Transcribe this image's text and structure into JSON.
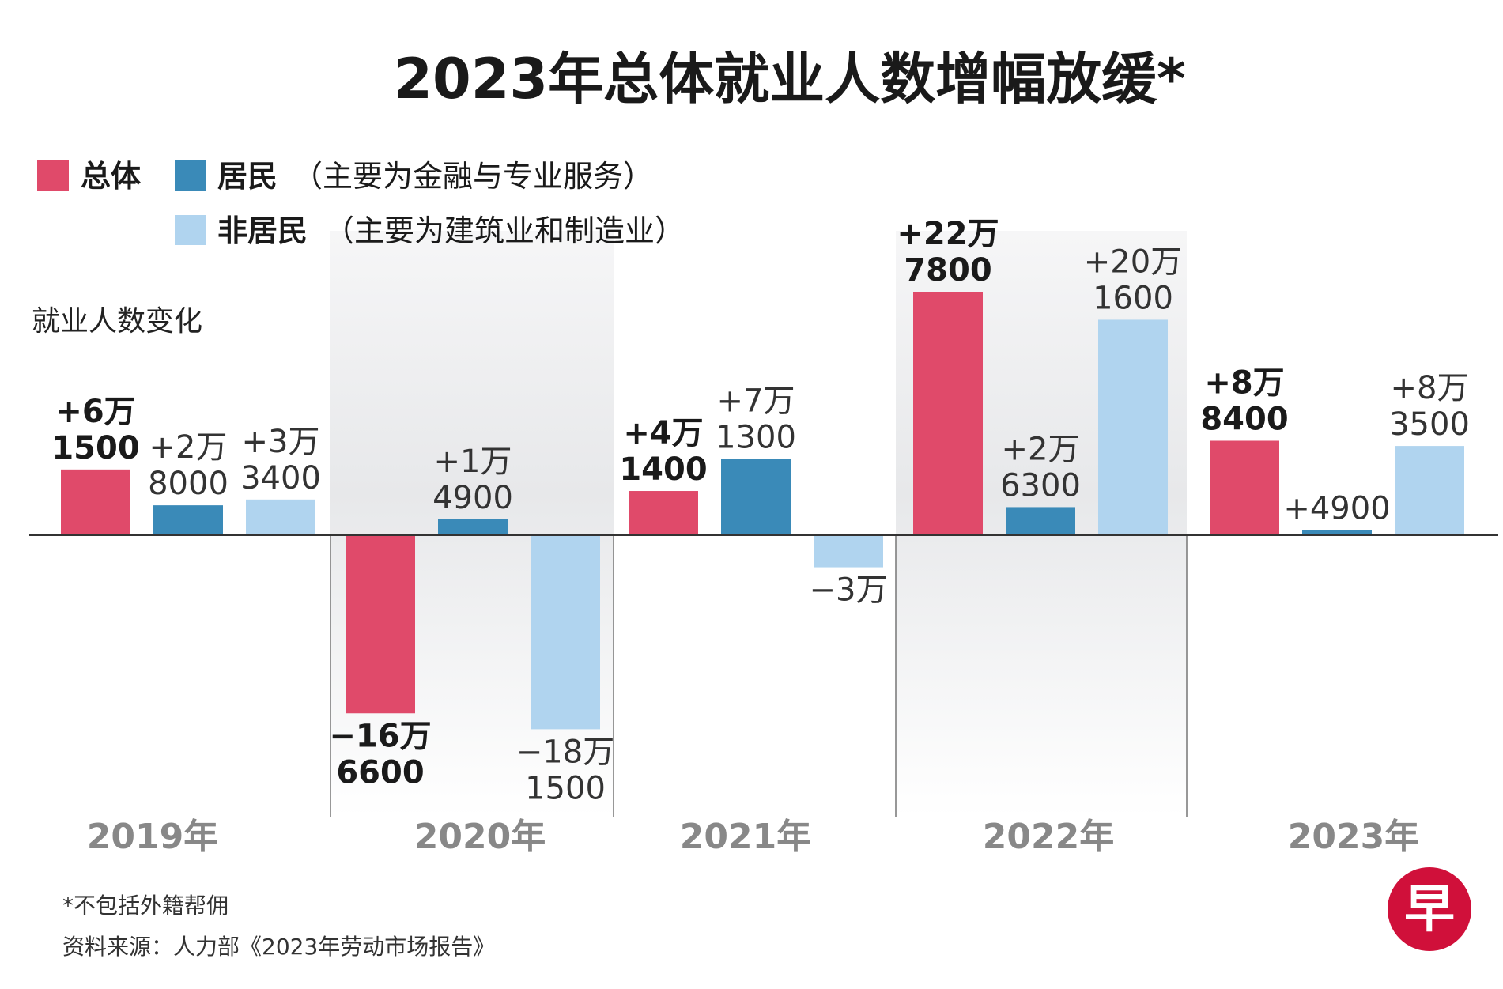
{
  "chart_data": {
    "type": "bar",
    "title": "2023年总体就业人数增幅放缓*",
    "ylabel": "就业人数变化",
    "categories": [
      "2019年",
      "2020年",
      "2021年",
      "2022年",
      "2023年"
    ],
    "highlight_category": "2023年",
    "shaded_categories": [
      "2020年",
      "2022年"
    ],
    "legend": [
      {
        "name": "总体",
        "note": ""
      },
      {
        "name": "居民",
        "note": "（主要为金融与专业服务）"
      },
      {
        "name": "非居民",
        "note": "（主要为建筑业和制造业）"
      }
    ],
    "grid": false,
    "series": [
      {
        "name": "总体",
        "color": "#e04a6a",
        "values": [
          61500,
          -166600,
          41400,
          227800,
          88400
        ],
        "labels": [
          [
            "+6万",
            "1500"
          ],
          [
            "−16万",
            "6600"
          ],
          [
            "+4万",
            "1400"
          ],
          [
            "+22万",
            "7800"
          ],
          [
            "+8万",
            "8400"
          ]
        ]
      },
      {
        "name": "居民",
        "color": "#3a8ab8",
        "values": [
          28000,
          14900,
          71300,
          26300,
          4900
        ],
        "labels": [
          [
            "+2万",
            "8000"
          ],
          [
            "+1万",
            "4900"
          ],
          [
            "+7万",
            "1300"
          ],
          [
            "+2万",
            "6300"
          ],
          [
            "+4900"
          ]
        ]
      },
      {
        "name": "非居民",
        "color": "#b0d4ef",
        "values": [
          33400,
          -181500,
          -30000,
          201600,
          83500
        ],
        "labels": [
          [
            "+3万",
            "3400"
          ],
          [
            "−18万",
            "1500"
          ],
          [
            "−3万"
          ],
          [
            "+20万",
            "1600"
          ],
          [
            "+8万",
            "3500"
          ]
        ]
      }
    ]
  },
  "footnote": "*不包括外籍帮佣",
  "source": "资料来源：人力部《2023年劳动市场报告》",
  "logo_text": "早",
  "colors": {
    "logo": "#d0103a",
    "shade": "#e6e7e9",
    "axis": "#333333"
  }
}
